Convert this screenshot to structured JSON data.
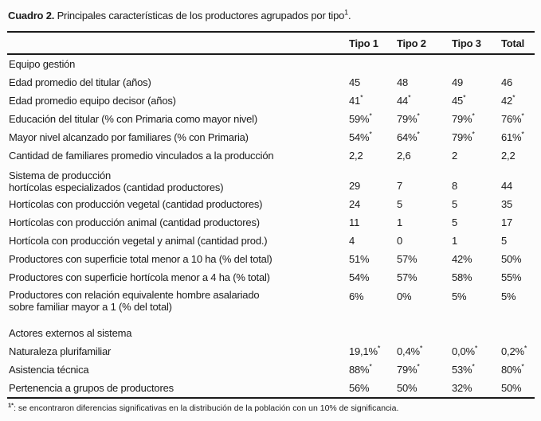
{
  "title": {
    "prefix": "Cuadro 2.",
    "main": " Principales características de los productores agrupados por tipo",
    "superscript": "1",
    "suffix": "."
  },
  "table": {
    "columns": [
      "Tipo 1",
      "Tipo 2",
      "Tipo 3",
      "Total"
    ],
    "rows": [
      {
        "type": "section",
        "label": "Equipo gestión"
      },
      {
        "type": "data",
        "label": "Edad promedio del titular (años)",
        "values": [
          "45",
          "48",
          "49",
          "46"
        ]
      },
      {
        "type": "data",
        "label": "Edad promedio equipo decisor  (años)",
        "values": [
          "41*",
          "44*",
          "45*",
          "42*"
        ]
      },
      {
        "type": "data",
        "label": "Educación del titular (% con Primaria como mayor nivel)",
        "values": [
          "59%*",
          "79%*",
          "79%*",
          "76%*"
        ]
      },
      {
        "type": "data",
        "label": "Mayor nivel alcanzado por familiares (% con Primaria)",
        "values": [
          "54%*",
          "64%*",
          "79%*",
          "61%*"
        ]
      },
      {
        "type": "data",
        "label": "Cantidad de familiares promedio vinculados a la producción",
        "values": [
          "2,2",
          "2,6",
          "2",
          "2,2"
        ]
      },
      {
        "type": "twoline",
        "label_line1": "Sistema de producción",
        "label_line2": "hortícolas especializados (cantidad productores)",
        "values": [
          "29",
          "7",
          "8",
          "44"
        ]
      },
      {
        "type": "data",
        "label": "Hortícolas con producción vegetal (cantidad productores)",
        "values": [
          "24",
          "5",
          "5",
          "35"
        ]
      },
      {
        "type": "data",
        "label": "Hortícolas con producción animal (cantidad productores)",
        "values": [
          "11",
          "1",
          "5",
          "17"
        ]
      },
      {
        "type": "data",
        "label": "Hortícola con producción vegetal y animal (cantidad prod.)",
        "values": [
          "4",
          "0",
          "1",
          "5"
        ]
      },
      {
        "type": "data",
        "label": "Productores con superficie total menor a 10 ha (% del total)",
        "values": [
          "51%",
          "57%",
          "42%",
          "50%"
        ]
      },
      {
        "type": "data",
        "label": "Productores con superficie hortícola menor a 4 ha (% total)",
        "values": [
          "54%",
          "57%",
          "58%",
          "55%"
        ]
      },
      {
        "type": "twoline",
        "label_line1": "Productores con relación equivalente hombre asalariado",
        "label_line2": "sobre familiar mayor a 1 (% del total)",
        "values": [
          "6%",
          "0%",
          "5%",
          "5%"
        ]
      },
      {
        "type": "section",
        "label": "Actores externos al sistema"
      },
      {
        "type": "data",
        "label": "Naturaleza plurifamiliar",
        "values": [
          "19,1%*",
          "0,4%*",
          "0,0%*",
          "0,2%*"
        ]
      },
      {
        "type": "data",
        "label": "Asistencia técnica",
        "values": [
          "88%*",
          "79%*",
          "53%*",
          "80%*"
        ]
      },
      {
        "type": "data",
        "label": "Pertenencia a grupos de productores",
        "values": [
          "56%",
          "50%",
          "32%",
          "50%"
        ]
      }
    ]
  },
  "footnote": {
    "marker": "1*",
    "text": ": se encontraron diferencias significativas en la distribución de la población con un 10% de significancia."
  },
  "colors": {
    "background": "#fcfcfc",
    "text": "#1b1b1b",
    "rule": "#1a1a1a"
  }
}
